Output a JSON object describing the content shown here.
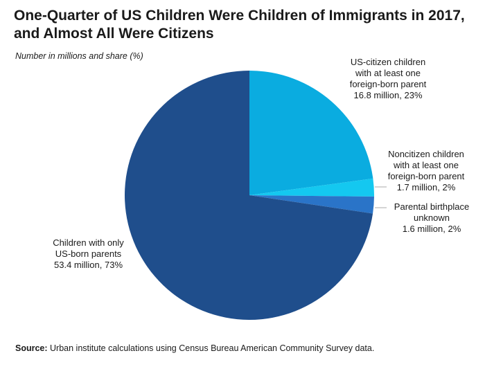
{
  "colors": {
    "us_citizen": "#0aace0",
    "noncitizen": "#14c8f0",
    "unknown": "#2a74c8",
    "us_born": "#1f4e8c",
    "leader": "#aaaaaa"
  },
  "chart_data": {
    "type": "pie",
    "title": "One-Quarter of US Children Were Children of Immigrants in 2017, and Almost All Were Citizens",
    "subtitle": "Number in millions and share (%)",
    "unit": "millions",
    "start_angle_deg": 0,
    "direction": "clockwise",
    "slices": [
      {
        "id": "us_citizen",
        "label_lines": [
          "US-citizen children",
          "with at least one",
          "foreign-born parent"
        ],
        "value_text": "16.8 million, 23%",
        "value": 16.8,
        "share": 23
      },
      {
        "id": "noncitizen",
        "label_lines": [
          "Noncitizen children",
          "with at least one",
          "foreign-born parent"
        ],
        "value_text": "1.7 million, 2%",
        "value": 1.7,
        "share": 2
      },
      {
        "id": "unknown",
        "label_lines": [
          "Parental birthplace",
          "unknown"
        ],
        "value_text": "1.6 million, 2%",
        "value": 1.6,
        "share": 2
      },
      {
        "id": "us_born",
        "label_lines": [
          "Children with only",
          "US-born parents"
        ],
        "value_text": "53.4 million, 73%",
        "value": 53.4,
        "share": 73
      }
    ]
  },
  "source": {
    "label": "Source:",
    "text": " Urban institute calculations using Census Bureau American Community Survey data."
  }
}
